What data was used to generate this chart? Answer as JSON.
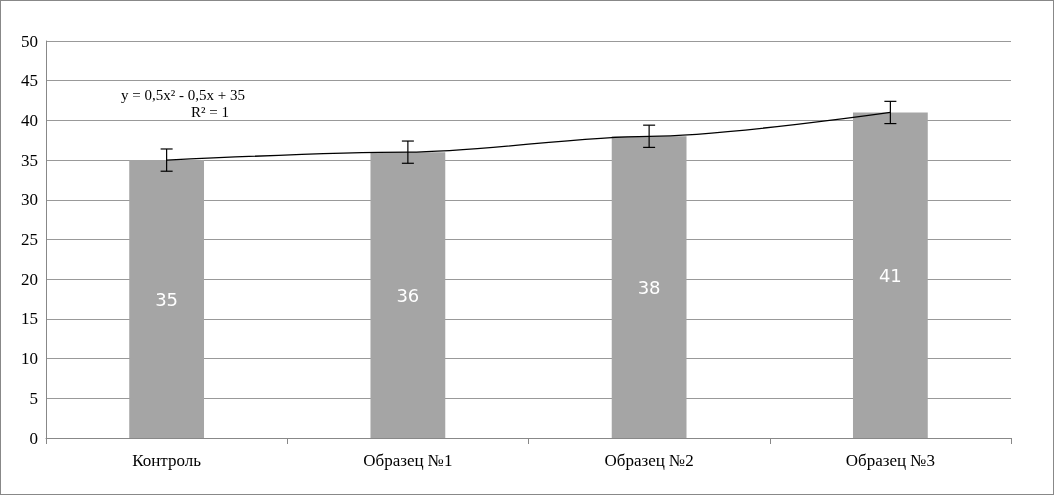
{
  "chart_data": {
    "type": "bar",
    "categories": [
      "Контроль",
      "Образец №1",
      "Образец №2",
      "Образец №3"
    ],
    "series": [
      {
        "color": "#a5a5a5",
        "values": [
          35,
          36,
          38,
          41
        ],
        "value_labels": [
          "35",
          "36",
          "38",
          "41"
        ],
        "errors": [
          1.4,
          1.4,
          1.4,
          1.4
        ]
      },
      {
        "type": "line",
        "color": "#000000",
        "x": [
          "Контроль",
          "Образец №1",
          "Образец №2",
          "Образец №3"
        ],
        "values": [
          35,
          36,
          38,
          41
        ],
        "marker": "none"
      }
    ],
    "annotations": [
      "y = 0,5x² - 0,5x + 35",
      "R² = 1"
    ],
    "ylim": [
      0,
      50
    ],
    "yticks": [
      0,
      5,
      10,
      15,
      20,
      25,
      30,
      35,
      40,
      45,
      50
    ],
    "grid": "y"
  }
}
